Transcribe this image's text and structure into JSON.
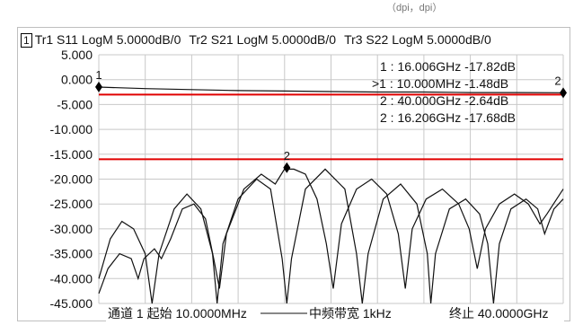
{
  "top_partial_text": "（dpi，dpi）",
  "window_number": "1",
  "traces": [
    {
      "label": "Tr1 S11 LogM 5.0000dB/0"
    },
    {
      "label": "Tr2 S21 LogM 5.0000dB/0"
    },
    {
      "label": "Tr3 S22 LogM 5.0000dB/0"
    }
  ],
  "marker_table": [
    "1 : 16.006GHz -17.82dB",
    ">1 : 10.000MHz -1.48dB",
    "2 : 40.000GHz -2.64dB",
    "2 : 16.206GHz -17.68dB"
  ],
  "footer": {
    "start": "通道 1 起始 10.0000MHz",
    "ifbw": "中频带宽 1kHz",
    "stop": "终止 40.0000GHz"
  },
  "colors": {
    "limit_line": "#e00000",
    "trace": "#111111",
    "grid": "#c8c8c8",
    "marker": "#000000"
  },
  "chart_data": {
    "type": "line",
    "x_unit": "GHz",
    "xlim": [
      0.01,
      40
    ],
    "ylim": [
      -45,
      5
    ],
    "yticks": [
      5,
      0,
      -5,
      -10,
      -15,
      -20,
      -25,
      -30,
      -35,
      -40,
      -45
    ],
    "ytick_labels": [
      "5.000",
      "0.000",
      "-5.000",
      "-10.000",
      "-15.000",
      "-20.000",
      "-25.000",
      "-30.000",
      "-35.000",
      "-40.000",
      "-45.000"
    ],
    "grid": true,
    "limit_lines": [
      -3.0,
      -16.0
    ],
    "markers": [
      {
        "label": "1",
        "x": 0.01,
        "y": -1.48
      },
      {
        "label": "2",
        "x": 16.2,
        "y": -17.7
      },
      {
        "label": "2",
        "x": 40.0,
        "y": -2.64
      }
    ],
    "series": [
      {
        "points": [
          [
            0.01,
            -1.5
          ],
          [
            4,
            -1.8
          ],
          [
            8,
            -2.0
          ],
          [
            12,
            -2.2
          ],
          [
            16,
            -2.3
          ],
          [
            20,
            -2.4
          ],
          [
            24,
            -2.5
          ],
          [
            28,
            -2.5
          ],
          [
            32,
            -2.6
          ],
          [
            36,
            -2.6
          ],
          [
            40,
            -2.64
          ]
        ]
      },
      {
        "points": [
          [
            0.01,
            -40
          ],
          [
            1,
            -32
          ],
          [
            2,
            -28.5
          ],
          [
            3,
            -30
          ],
          [
            4,
            -35
          ],
          [
            4.6,
            -45
          ],
          [
            5.2,
            -35
          ],
          [
            6.5,
            -26
          ],
          [
            7.6,
            -23
          ],
          [
            8.8,
            -26
          ],
          [
            9.8,
            -35
          ],
          [
            10.2,
            -45
          ],
          [
            10.7,
            -33
          ],
          [
            12,
            -24
          ],
          [
            13.6,
            -20
          ],
          [
            14.8,
            -22
          ],
          [
            15.8,
            -36
          ],
          [
            16.2,
            -45
          ],
          [
            16.6,
            -36
          ],
          [
            17.8,
            -22
          ],
          [
            19.5,
            -18
          ],
          [
            21.2,
            -22
          ],
          [
            22.2,
            -35
          ],
          [
            22.7,
            -45
          ],
          [
            23.2,
            -35
          ],
          [
            24.5,
            -24
          ],
          [
            26,
            -21
          ],
          [
            27.4,
            -25
          ],
          [
            28.3,
            -35
          ],
          [
            28.6,
            -45
          ],
          [
            29.0,
            -35
          ],
          [
            30.2,
            -26
          ],
          [
            31.6,
            -24
          ],
          [
            32.8,
            -27
          ],
          [
            33.5,
            -33
          ],
          [
            34.0,
            -45
          ],
          [
            34.5,
            -33
          ],
          [
            35.5,
            -26
          ],
          [
            36.8,
            -24
          ],
          [
            37.8,
            -26
          ],
          [
            38.4,
            -31
          ],
          [
            39.2,
            -26
          ],
          [
            40,
            -24
          ]
        ]
      },
      {
        "points": [
          [
            0.01,
            -43
          ],
          [
            0.8,
            -38
          ],
          [
            1.8,
            -35
          ],
          [
            2.8,
            -36
          ],
          [
            3.4,
            -40
          ],
          [
            3.9,
            -36
          ],
          [
            4.8,
            -34
          ],
          [
            5.4,
            -36
          ],
          [
            6.2,
            -32
          ],
          [
            7.2,
            -26
          ],
          [
            8.2,
            -25
          ],
          [
            9.2,
            -28
          ],
          [
            9.9,
            -36
          ],
          [
            10.4,
            -42
          ],
          [
            11.0,
            -31
          ],
          [
            12.5,
            -22
          ],
          [
            14.0,
            -19
          ],
          [
            15.2,
            -21
          ],
          [
            16.0,
            -18
          ],
          [
            16.8,
            -18
          ],
          [
            17.8,
            -19
          ],
          [
            18.8,
            -24
          ],
          [
            19.6,
            -33
          ],
          [
            20.2,
            -42
          ],
          [
            20.9,
            -29
          ],
          [
            22.2,
            -22
          ],
          [
            23.5,
            -20
          ],
          [
            24.8,
            -23
          ],
          [
            25.8,
            -31
          ],
          [
            26.4,
            -42
          ],
          [
            27.0,
            -30
          ],
          [
            28.2,
            -24
          ],
          [
            29.6,
            -22
          ],
          [
            31.0,
            -25
          ],
          [
            31.9,
            -30
          ],
          [
            32.6,
            -38
          ],
          [
            33.3,
            -30
          ],
          [
            34.5,
            -25
          ],
          [
            35.8,
            -23
          ],
          [
            37.0,
            -25
          ],
          [
            38.0,
            -29
          ],
          [
            38.6,
            -27
          ],
          [
            40,
            -22
          ]
        ]
      }
    ]
  }
}
